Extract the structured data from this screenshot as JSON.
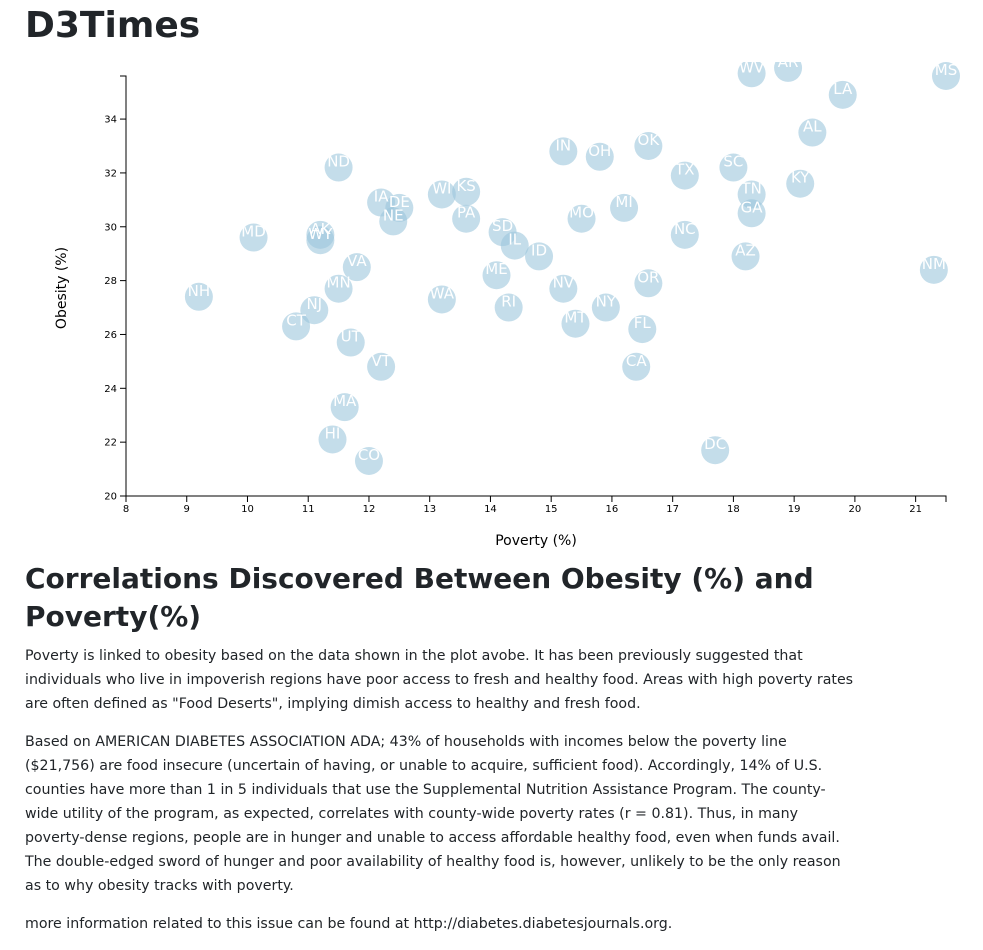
{
  "page": {
    "title": "D3Times"
  },
  "article": {
    "heading": "Correlations Discovered Between Obesity (%) and Poverty(%)",
    "paragraphs": [
      "Poverty is linked to obesity based on the data shown in the plot avobe. It has been previously suggested that individuals who live in impoverish regions have poor access to fresh and healthy food. Areas with high poverty rates are often defined as \"Food Deserts\", implying dimish access to healthy and fresh food.",
      "Based on AMERICAN DIABETES ASSOCIATION ADA; 43% of households with incomes below the poverty line ($21,756) are food insecure (uncertain of having, or unable to acquire, sufficient food). Accordingly, 14% of U.S. counties have more than 1 in 5 individuals that use the Supplemental Nutrition Assistance Program. The county-wide utility of the program, as expected, correlates with county-wide poverty rates (r = 0.81). Thus, in many poverty-dense regions, people are in hunger and unable to access affordable healthy food, even when funds avail. The double-edged sword of hunger and poor availability of healthy food is, however, unlikely to be the only reason as to why obesity tracks with poverty.",
      "more information related to this issue can be found at http://diabetes.diabetesjournals.org."
    ]
  },
  "chart_data": {
    "type": "scatter",
    "title": "",
    "xlabel": "Poverty (%)",
    "ylabel": "Obesity (%)",
    "xlim": [
      8,
      21.5
    ],
    "ylim": [
      20,
      35.6
    ],
    "x_ticks": [
      8,
      9,
      10,
      11,
      12,
      13,
      14,
      15,
      16,
      17,
      18,
      19,
      20,
      21
    ],
    "y_ticks": [
      20,
      22,
      24,
      26,
      28,
      30,
      32,
      34
    ],
    "grid": false,
    "marker_color": "#9cc7dc",
    "label_color": "#ffffff",
    "points": [
      {
        "abbr": "WV",
        "x": 18.3,
        "y": 35.7
      },
      {
        "abbr": "AR",
        "x": 18.9,
        "y": 35.9
      },
      {
        "abbr": "MS",
        "x": 21.5,
        "y": 35.6
      },
      {
        "abbr": "LA",
        "x": 19.8,
        "y": 34.9
      },
      {
        "abbr": "AL",
        "x": 19.3,
        "y": 33.5
      },
      {
        "abbr": "OK",
        "x": 16.6,
        "y": 33.0
      },
      {
        "abbr": "IN",
        "x": 15.2,
        "y": 32.8
      },
      {
        "abbr": "OH",
        "x": 15.8,
        "y": 32.6
      },
      {
        "abbr": "SC",
        "x": 18.0,
        "y": 32.2
      },
      {
        "abbr": "ND",
        "x": 11.5,
        "y": 32.2
      },
      {
        "abbr": "TX",
        "x": 17.2,
        "y": 31.9
      },
      {
        "abbr": "KY",
        "x": 19.1,
        "y": 31.6
      },
      {
        "abbr": "TN",
        "x": 18.3,
        "y": 31.2
      },
      {
        "abbr": "WI",
        "x": 13.2,
        "y": 31.2
      },
      {
        "abbr": "KS",
        "x": 13.6,
        "y": 31.3
      },
      {
        "abbr": "IA",
        "x": 12.2,
        "y": 30.9
      },
      {
        "abbr": "DE",
        "x": 12.5,
        "y": 30.7
      },
      {
        "abbr": "MI",
        "x": 16.2,
        "y": 30.7
      },
      {
        "abbr": "GA",
        "x": 18.3,
        "y": 30.5
      },
      {
        "abbr": "NE",
        "x": 12.4,
        "y": 30.2
      },
      {
        "abbr": "PA",
        "x": 13.6,
        "y": 30.3
      },
      {
        "abbr": "MO",
        "x": 15.5,
        "y": 30.3
      },
      {
        "abbr": "SD",
        "x": 14.2,
        "y": 29.8
      },
      {
        "abbr": "NC",
        "x": 17.2,
        "y": 29.7
      },
      {
        "abbr": "MD",
        "x": 10.1,
        "y": 29.6
      },
      {
        "abbr": "AK",
        "x": 11.2,
        "y": 29.7
      },
      {
        "abbr": "WY",
        "x": 11.2,
        "y": 29.5
      },
      {
        "abbr": "IL",
        "x": 14.4,
        "y": 29.3
      },
      {
        "abbr": "ID",
        "x": 14.8,
        "y": 28.9
      },
      {
        "abbr": "AZ",
        "x": 18.2,
        "y": 28.9
      },
      {
        "abbr": "VA",
        "x": 11.8,
        "y": 28.5
      },
      {
        "abbr": "NM",
        "x": 21.3,
        "y": 28.4
      },
      {
        "abbr": "ME",
        "x": 14.1,
        "y": 28.2
      },
      {
        "abbr": "OR",
        "x": 16.6,
        "y": 27.9
      },
      {
        "abbr": "MN",
        "x": 11.5,
        "y": 27.7
      },
      {
        "abbr": "NV",
        "x": 15.2,
        "y": 27.7
      },
      {
        "abbr": "NH",
        "x": 9.2,
        "y": 27.4
      },
      {
        "abbr": "WA",
        "x": 13.2,
        "y": 27.3
      },
      {
        "abbr": "RI",
        "x": 14.3,
        "y": 27.0
      },
      {
        "abbr": "NY",
        "x": 15.9,
        "y": 27.0
      },
      {
        "abbr": "NJ",
        "x": 11.1,
        "y": 26.9
      },
      {
        "abbr": "MT",
        "x": 15.4,
        "y": 26.4
      },
      {
        "abbr": "CT",
        "x": 10.8,
        "y": 26.3
      },
      {
        "abbr": "FL",
        "x": 16.5,
        "y": 26.2
      },
      {
        "abbr": "UT",
        "x": 11.7,
        "y": 25.7
      },
      {
        "abbr": "VT",
        "x": 12.2,
        "y": 24.8
      },
      {
        "abbr": "CA",
        "x": 16.4,
        "y": 24.8
      },
      {
        "abbr": "MA",
        "x": 11.6,
        "y": 23.3
      },
      {
        "abbr": "HI",
        "x": 11.4,
        "y": 22.1
      },
      {
        "abbr": "DC",
        "x": 17.7,
        "y": 21.7
      },
      {
        "abbr": "CO",
        "x": 12.0,
        "y": 21.3
      }
    ]
  }
}
